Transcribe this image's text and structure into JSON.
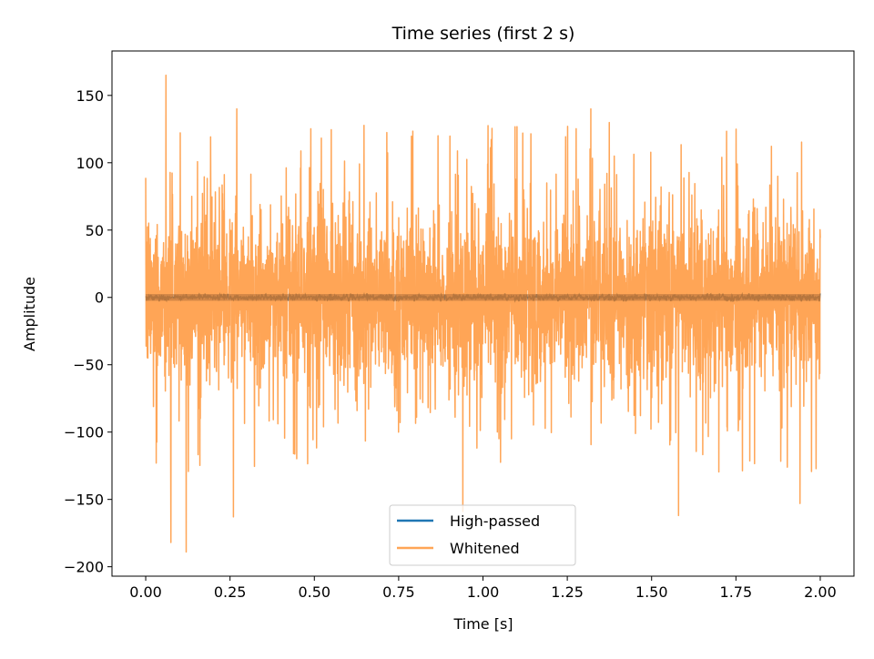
{
  "chart_data": {
    "type": "line",
    "title": "Time series (first 2 s)",
    "xlabel": "Time [s]",
    "ylabel": "Amplitude",
    "xlim": [
      -0.1,
      2.1
    ],
    "ylim": [
      -207,
      183
    ],
    "x_ticks": [
      0.0,
      0.25,
      0.5,
      0.75,
      1.0,
      1.25,
      1.5,
      1.75,
      2.0
    ],
    "x_tick_labels": [
      "0.00",
      "0.25",
      "0.50",
      "0.75",
      "1.00",
      "1.25",
      "1.50",
      "1.75",
      "2.00"
    ],
    "y_ticks": [
      -200,
      -150,
      -100,
      -50,
      0,
      50,
      100,
      150
    ],
    "y_tick_labels": [
      "−200",
      "−150",
      "−100",
      "−50",
      "0",
      "50",
      "100",
      "150"
    ],
    "x_range": [
      0,
      2
    ],
    "grid": false,
    "legend_position": "lower center",
    "series": [
      {
        "name": "High-passed",
        "color": "#1f77b4",
        "alpha": 1.0,
        "amplitude_range": [
          -3,
          3
        ],
        "description_values": "noise around 0"
      },
      {
        "name": "Whitened",
        "color": "#ff7f0e",
        "alpha": 0.7,
        "amplitude_range": [
          -189,
          165
        ],
        "peaks": [
          {
            "x": 0.06,
            "y": 165
          },
          {
            "x": 0.075,
            "y": -182
          },
          {
            "x": 0.12,
            "y": -189
          },
          {
            "x": 0.26,
            "y": -163
          },
          {
            "x": 0.94,
            "y": -159
          },
          {
            "x": 1.58,
            "y": -162
          },
          {
            "x": 1.94,
            "y": -153
          },
          {
            "x": 1.32,
            "y": 140
          },
          {
            "x": 0.27,
            "y": 140
          }
        ]
      }
    ]
  }
}
